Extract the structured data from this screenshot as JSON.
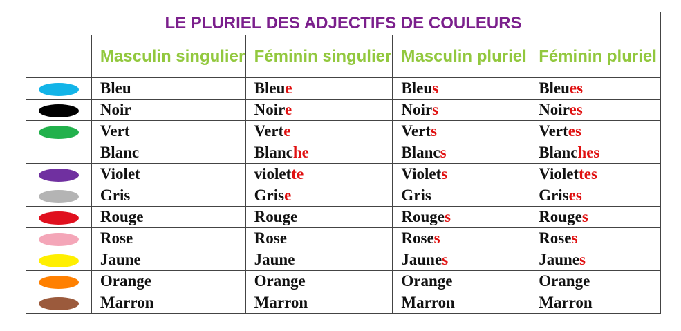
{
  "title": "LE PLURIEL DES ADJECTIFS DE COULEURS",
  "headers": [
    "Masculin singulier",
    "Féminin singulier",
    "Masculin pluriel",
    "Féminin pluriel"
  ],
  "colors": {
    "title": "#7b1f8c",
    "header": "#92c83e",
    "suffix": "#e01010"
  },
  "rows": [
    {
      "swatch": "#12b4e8",
      "cells": [
        [
          "Bleu",
          ""
        ],
        [
          "Bleu",
          "e"
        ],
        [
          "Bleu",
          "s"
        ],
        [
          "Bleu",
          "es"
        ]
      ]
    },
    {
      "swatch": "#000000",
      "cells": [
        [
          "Noir",
          ""
        ],
        [
          "Noir",
          "e"
        ],
        [
          "Noir",
          "s"
        ],
        [
          "Noir",
          "es"
        ]
      ]
    },
    {
      "swatch": "#22b14c",
      "cells": [
        [
          "Vert",
          ""
        ],
        [
          "Vert",
          "e"
        ],
        [
          "Vert",
          "s"
        ],
        [
          "Vert",
          "es"
        ]
      ]
    },
    {
      "swatch": "#ffffff",
      "cells": [
        [
          "Blanc",
          ""
        ],
        [
          "Blanc",
          "he"
        ],
        [
          "Blanc",
          "s"
        ],
        [
          "Blanc",
          "hes"
        ]
      ]
    },
    {
      "swatch": "#7030a0",
      "cells": [
        [
          "Violet",
          ""
        ],
        [
          "violet",
          "te"
        ],
        [
          "Violet",
          "s"
        ],
        [
          "Violet",
          "tes"
        ]
      ]
    },
    {
      "swatch": "#b4b4b4",
      "cells": [
        [
          "Gris",
          ""
        ],
        [
          "Gris",
          "e"
        ],
        [
          "Gris",
          ""
        ],
        [
          "Gris",
          "es"
        ]
      ]
    },
    {
      "swatch": "#e0101e",
      "cells": [
        [
          "Rouge",
          ""
        ],
        [
          "Rouge",
          ""
        ],
        [
          "Rouge",
          "s"
        ],
        [
          "Rouge",
          "s"
        ]
      ]
    },
    {
      "swatch": "#f4a6b8",
      "cells": [
        [
          "Rose",
          ""
        ],
        [
          "Rose",
          ""
        ],
        [
          "Rose",
          "s"
        ],
        [
          "Rose",
          "s"
        ]
      ]
    },
    {
      "swatch": "#ffef00",
      "cells": [
        [
          "Jaune",
          ""
        ],
        [
          "Jaune",
          ""
        ],
        [
          "Jaune",
          "s"
        ],
        [
          "Jaune",
          "s"
        ]
      ]
    },
    {
      "swatch": "#ff8000",
      "cells": [
        [
          "Orange",
          ""
        ],
        [
          "Orange",
          ""
        ],
        [
          "Orange",
          ""
        ],
        [
          "Orange",
          ""
        ]
      ]
    },
    {
      "swatch": "#9b5a3c",
      "cells": [
        [
          "Marron",
          ""
        ],
        [
          "Marron",
          ""
        ],
        [
          "Marron",
          ""
        ],
        [
          "Marron",
          ""
        ]
      ]
    }
  ]
}
